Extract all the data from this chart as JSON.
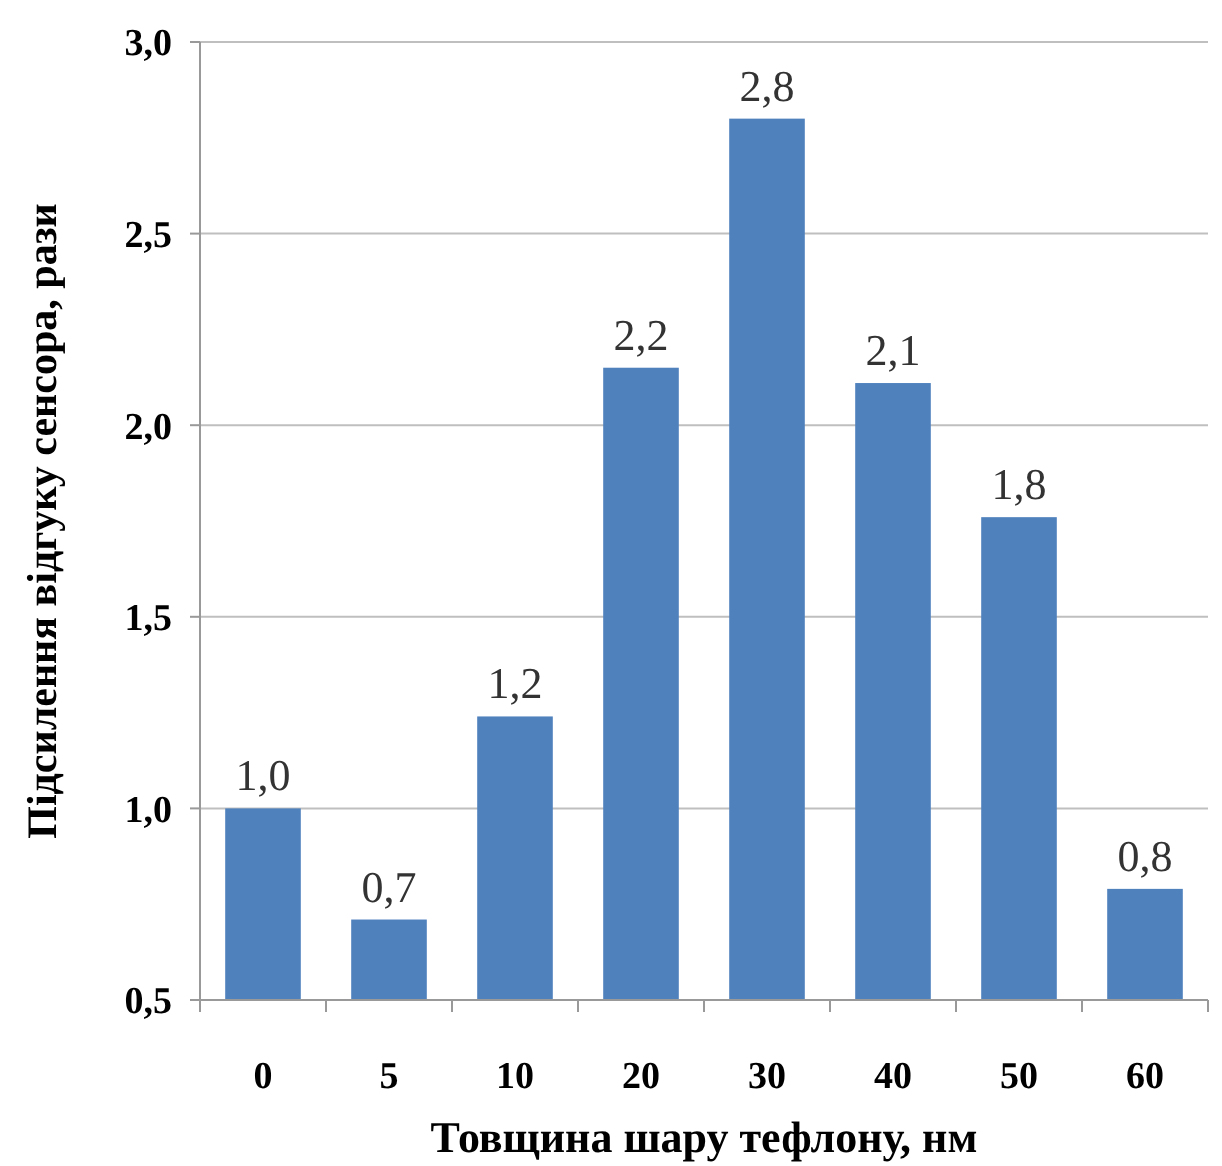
{
  "chart_data": {
    "type": "bar",
    "xlabel": "Товщина шару тефлону, нм",
    "ylabel": "Підсилення відгуку сенсора, рази",
    "categories": [
      "0",
      "5",
      "10",
      "20",
      "30",
      "40",
      "50",
      "60"
    ],
    "values": [
      1.0,
      0.71,
      1.24,
      2.15,
      2.8,
      2.11,
      1.76,
      0.79
    ],
    "value_labels": [
      "1,0",
      "0,7",
      "1,2",
      "2,2",
      "2,8",
      "2,1",
      "1,8",
      "0,8"
    ],
    "color": "#4f81bd",
    "ylim": [
      0.5,
      3.0
    ],
    "yticks": [
      {
        "value": 0.5,
        "label": "0,5"
      },
      {
        "value": 1.0,
        "label": "1,0"
      },
      {
        "value": 1.5,
        "label": "1,5"
      },
      {
        "value": 2.0,
        "label": "2,0"
      },
      {
        "value": 2.5,
        "label": "2,5"
      },
      {
        "value": 3.0,
        "label": "3,0"
      }
    ],
    "grid": "y"
  }
}
